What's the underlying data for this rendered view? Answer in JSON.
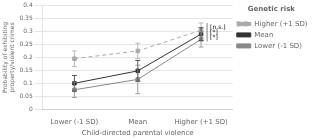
{
  "chart_data": {
    "type": "line",
    "categories": [
      "Lower (-1 SD)",
      "Mean",
      "Higher (+1 SD)"
    ],
    "series": [
      {
        "name": "Higher (+1 SD)",
        "values": [
          0.195,
          0.225,
          0.305
        ],
        "errors": [
          0.03,
          0.03,
          0.028
        ],
        "line_style": "dashed",
        "marker": "square",
        "color": "#aaaaaa"
      },
      {
        "name": "Mean",
        "values": [
          0.1,
          0.148,
          0.29
        ],
        "errors": [
          0.03,
          0.04,
          0.025
        ],
        "line_style": "solid",
        "marker": "square",
        "color": "#333333"
      },
      {
        "name": "Lower (-1 SD)",
        "values": [
          0.075,
          0.115,
          0.27
        ],
        "errors": [
          0.03,
          0.055,
          0.03
        ],
        "line_style": "solid",
        "marker": "square",
        "color": "#888888"
      }
    ],
    "xlabel": "Child-directed parental violence",
    "ylabel": "Probability of exhibiting\nproperty/violent crimes",
    "ylim": [
      0,
      0.4
    ],
    "yticks": [
      0,
      0.05,
      0.1,
      0.15,
      0.2,
      0.25,
      0.3,
      0.35,
      0.4
    ],
    "grid": true,
    "legend": "right",
    "legend_title": "Genetic risk",
    "annotations": [
      {
        "text": "[n.s.]",
        "y": 0.317
      },
      {
        "text": "[*]",
        "y": 0.297
      },
      {
        "text": "[*]",
        "y": 0.277
      }
    ]
  }
}
